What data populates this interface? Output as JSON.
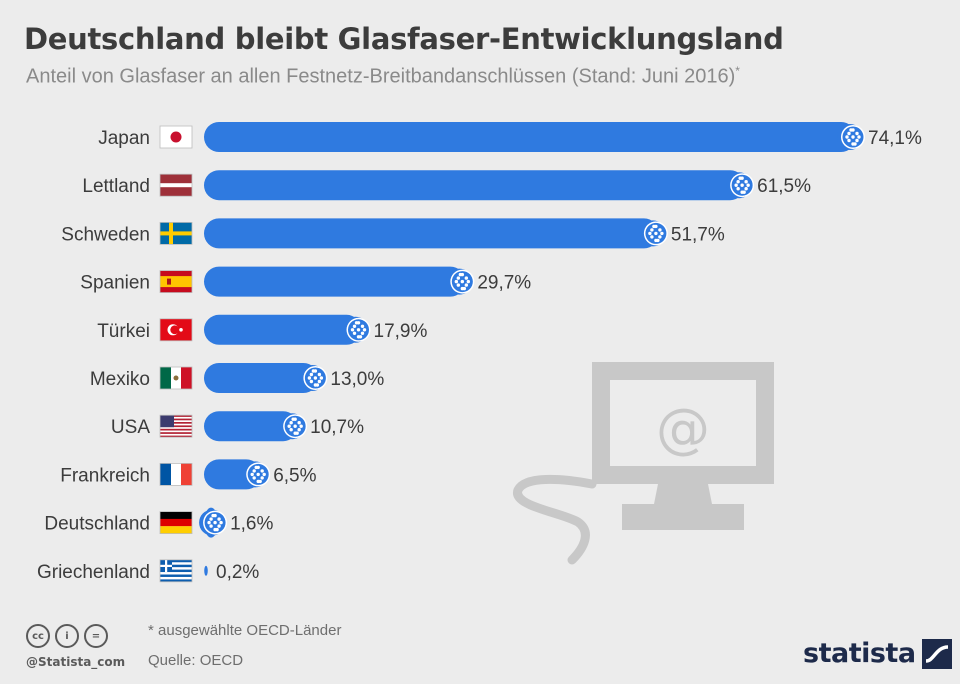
{
  "header": {
    "title": "Deutschland bleibt Glasfaser-Entwicklungsland",
    "subtitle": "Anteil von Glasfaser an allen Festnetz-Breitbandanschlüssen (Stand: Juni 2016)",
    "subtitle_mark": "*"
  },
  "chart_data": {
    "type": "bar",
    "orientation": "horizontal",
    "categories": [
      "Japan",
      "Lettland",
      "Schweden",
      "Spanien",
      "Türkei",
      "Mexiko",
      "USA",
      "Frankreich",
      "Deutschland",
      "Griechenland"
    ],
    "values": [
      74.1,
      61.5,
      51.7,
      29.7,
      17.9,
      13.0,
      10.7,
      6.5,
      1.6,
      0.2
    ],
    "value_labels": [
      "74,1%",
      "61,5%",
      "51,7%",
      "29,7%",
      "17,9%",
      "13,0%",
      "10,7%",
      "6,5%",
      "1,6%",
      "0,2%"
    ],
    "flags": [
      "japan-flag",
      "latvia-flag",
      "sweden-flag",
      "spain-flag",
      "turkey-flag",
      "mexico-flag",
      "usa-flag",
      "france-flag",
      "germany-flag",
      "greece-flag"
    ],
    "xlim": [
      0,
      74.1
    ],
    "bar_color": "#2f7ae0",
    "grid": false,
    "legend": "none"
  },
  "illustration": "computer-at-sign-icon",
  "footer": {
    "note": "* ausgewählte OECD-Länder",
    "source": "Quelle: OECD",
    "handle": "@Statista_com",
    "logo": "statista",
    "cc_icons": [
      "cc",
      "by",
      "nd"
    ]
  },
  "colors": {
    "background": "#ececec",
    "title": "#3c3c3c",
    "subtitle": "#8a8a8a",
    "bar": "#2f7ae0",
    "illustration": "#c8c8c8",
    "logo": "#1d2a4a"
  }
}
